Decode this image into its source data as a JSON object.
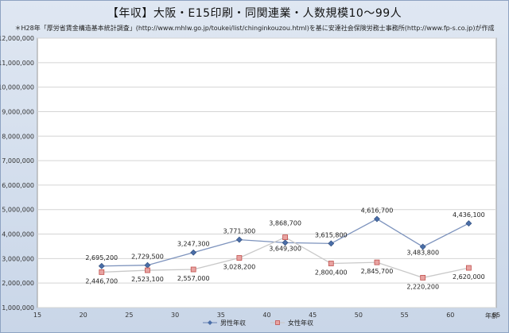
{
  "chart_data": {
    "type": "line",
    "title": "【年収】大阪・E15印刷・同関連業・人数規模10～99人",
    "subtitle": "＊H28年「厚労省賃金構造基本統計調査」(http://www.mhlw.go.jp/toukei/list/chinginkouzou.html)を基に安達社会保険労務士事務所(http://www.fp-s.co.jp)が作成",
    "xlabel": "年齢",
    "ylabel": "",
    "xlim": [
      15,
      65
    ],
    "ylim": [
      1000000,
      12000000
    ],
    "xticks": [
      15,
      20,
      25,
      30,
      35,
      40,
      45,
      50,
      55,
      60,
      65
    ],
    "xtick_labels": [
      "15",
      "20",
      "25",
      "30",
      "35",
      "40",
      "45",
      "50",
      "55",
      "60",
      "65"
    ],
    "yticks": [
      1000000,
      2000000,
      3000000,
      4000000,
      5000000,
      6000000,
      7000000,
      8000000,
      9000000,
      10000000,
      11000000,
      12000000
    ],
    "ytick_labels": [
      "1,000,000",
      "2,000,000",
      "3,000,000",
      "4,000,000",
      "5,000,000",
      "6,000,000",
      "7,000,000",
      "8,000,000",
      "9,000,000",
      "10,000,000",
      "11,000,000",
      "12,000,000"
    ],
    "x": [
      22,
      27,
      32,
      37,
      42,
      47,
      52,
      57,
      62
    ],
    "grid": true,
    "legend_position": "bottom",
    "series": [
      {
        "name": "男性年収",
        "color": "#4a6ea8",
        "marker": "diamond",
        "values": [
          2695200,
          2729500,
          3247300,
          3771300,
          3649300,
          3615800,
          4616700,
          3483800,
          4436100
        ],
        "labels": [
          "2,695,200",
          "2,729,500",
          "3,247,300",
          "3,771,300",
          "3,649,300",
          "3,615,800",
          "4,616,700",
          "3,483,800",
          "4,436,100"
        ]
      },
      {
        "name": "女性年収",
        "color": "#c0504d",
        "marker": "square",
        "values": [
          2446700,
          2523100,
          2557000,
          3028200,
          3868700,
          2800400,
          2845700,
          2220200,
          2620000
        ],
        "labels": [
          "2,446,700",
          "2,523,100",
          "2,557,000",
          "3,028,200",
          "3,868,700",
          "2,800,400",
          "2,845,700",
          "2,220,200",
          "2,620,000"
        ]
      }
    ]
  }
}
